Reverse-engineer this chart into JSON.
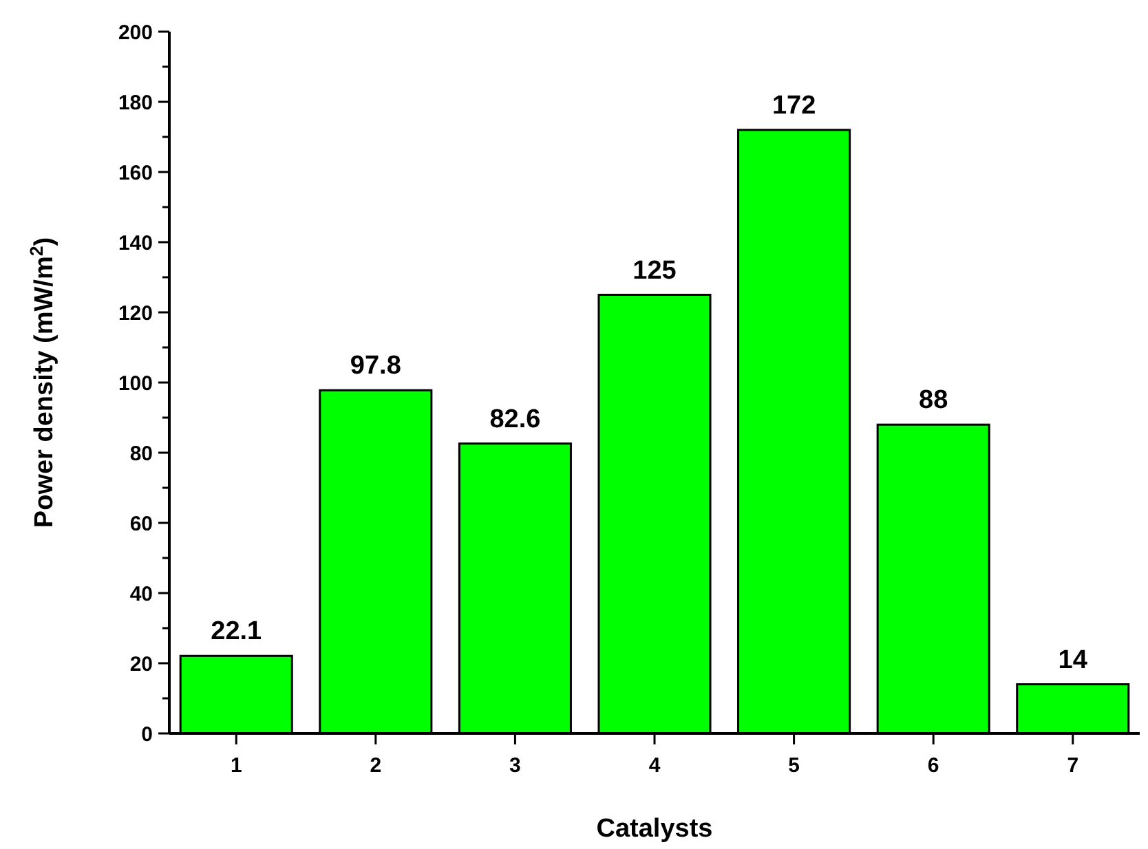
{
  "chart_data": {
    "type": "bar",
    "xlabel": "Catalysts",
    "ylabel": "Power density (mW/m$^{2}$)",
    "categories": [
      "1",
      "2",
      "3",
      "4",
      "5",
      "6",
      "7"
    ],
    "values": [
      22.1,
      97.8,
      82.6,
      125,
      172,
      88,
      14
    ],
    "color": "#00ff00",
    "data_labels": true,
    "ylim": [
      0,
      200
    ],
    "yticks": [
      0,
      {
        "value": 10,
        "label": null
      },
      20,
      {
        "value": 30,
        "label": null
      },
      40,
      {
        "value": 50,
        "label": null
      },
      60,
      {
        "value": 70,
        "label": null
      },
      80,
      {
        "value": 90,
        "label": null
      },
      100,
      {
        "value": 110,
        "label": null
      },
      120,
      {
        "value": 130,
        "label": null
      },
      140,
      {
        "value": 150,
        "label": null
      },
      160,
      {
        "value": 170,
        "label": null
      },
      180,
      {
        "value": 190,
        "label": null
      },
      200
    ],
    "grid": false
  }
}
